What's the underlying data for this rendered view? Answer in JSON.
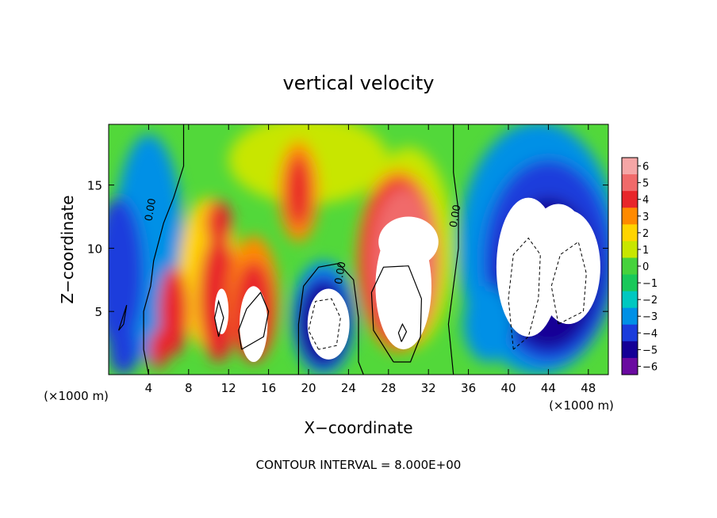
{
  "chart_data": {
    "type": "heatmap",
    "title": "vertical velocity",
    "xlabel": "X−coordinate",
    "ylabel": "Z−coordinate",
    "x_unit_left": "(×1000 m)",
    "x_unit_right": "(×1000 m)",
    "footer": "CONTOUR INTERVAL = 8.000E+00",
    "xlim": [
      0,
      50
    ],
    "ylim": [
      0,
      19.8
    ],
    "x_ticks": [
      "4",
      "8",
      "12",
      "16",
      "20",
      "24",
      "28",
      "32",
      "36",
      "40",
      "44",
      "48"
    ],
    "x_tick_values": [
      4,
      8,
      12,
      16,
      20,
      24,
      28,
      32,
      36,
      40,
      44,
      48
    ],
    "y_ticks": [
      "5",
      "10",
      "15"
    ],
    "y_tick_values": [
      5,
      10,
      15
    ],
    "colorbar": {
      "labels": [
        "6",
        "5",
        "4",
        "3",
        "2",
        "1",
        "0",
        "−1",
        "−2",
        "−3",
        "−4",
        "−5",
        "−6"
      ],
      "values": [
        6,
        5,
        4,
        3,
        2,
        1,
        0,
        -1,
        -2,
        -3,
        -4,
        -5,
        -6
      ],
      "colors": [
        "#f5a6a6",
        "#f06a6a",
        "#e8262a",
        "#ff8a00",
        "#ffd400",
        "#c8e600",
        "#46d23c",
        "#19c85a",
        "#00c8c0",
        "#0090e6",
        "#1a3cdc",
        "#140096",
        "#6a0aa0"
      ]
    },
    "contour_labels": [
      {
        "text": "0.00",
        "x": 4.5,
        "z": 13.0
      },
      {
        "text": "0.00",
        "x": 23.5,
        "z": 8.0
      },
      {
        "text": "0.00",
        "x": 35.0,
        "z": 12.5
      }
    ],
    "features": [
      {
        "sign": "positive",
        "x": 28.5,
        "z": 8.5,
        "peak": 8
      },
      {
        "sign": "positive",
        "x": 19,
        "z": 14.5,
        "peak": 5
      },
      {
        "sign": "positive",
        "x": 14.5,
        "z": 5.0,
        "peak": 7
      },
      {
        "sign": "positive",
        "x": 11.2,
        "z": 5.0,
        "peak": 6
      },
      {
        "sign": "negative",
        "x": 22,
        "z": 4.0,
        "peak": -7
      },
      {
        "sign": "negative",
        "x": 44.5,
        "z": 8.0,
        "peak": -9
      }
    ]
  }
}
